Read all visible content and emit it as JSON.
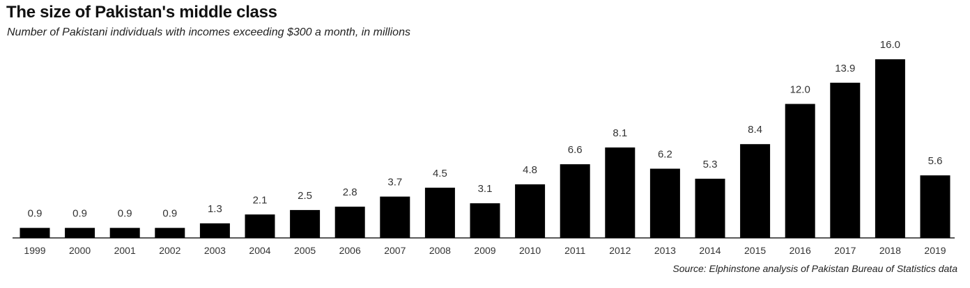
{
  "chart_data": {
    "type": "bar",
    "title": "The size of Pakistan's middle class",
    "subtitle": "Number of Pakistani individuals with incomes exceeding $300 a month, in millions",
    "source": "Source: Elphinstone analysis of Pakistan Bureau of Statistics data",
    "categories": [
      "1999",
      "2000",
      "2001",
      "2002",
      "2003",
      "2004",
      "2005",
      "2006",
      "2007",
      "2008",
      "2009",
      "2010",
      "2011",
      "2012",
      "2013",
      "2014",
      "2015",
      "2016",
      "2017",
      "2018",
      "2019"
    ],
    "values": [
      0.9,
      0.9,
      0.9,
      0.9,
      1.3,
      2.1,
      2.5,
      2.8,
      3.7,
      4.5,
      3.1,
      4.8,
      6.6,
      8.1,
      6.2,
      5.3,
      8.4,
      12.0,
      13.9,
      16.0,
      5.6
    ],
    "value_labels": [
      "0.9",
      "0.9",
      "0.9",
      "0.9",
      "1.3",
      "2.1",
      "2.5",
      "2.8",
      "3.7",
      "4.5",
      "3.1",
      "4.8",
      "6.6",
      "8.1",
      "6.2",
      "5.3",
      "8.4",
      "12.0",
      "13.9",
      "16.0",
      "5.6"
    ],
    "bar_color": "#000000",
    "grid": false,
    "legend": "none",
    "ylim": [
      0,
      16
    ]
  }
}
